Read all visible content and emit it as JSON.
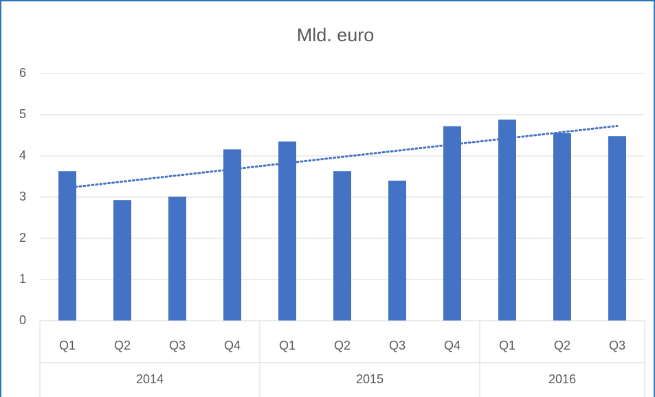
{
  "chart_data": {
    "type": "bar",
    "title": "Mld. euro",
    "groups": [
      {
        "name": "2014",
        "categories": [
          "Q1",
          "Q2",
          "Q3",
          "Q4"
        ]
      },
      {
        "name": "2015",
        "categories": [
          "Q1",
          "Q2",
          "Q3",
          "Q4"
        ]
      },
      {
        "name": "2016",
        "categories": [
          "Q1",
          "Q2",
          "Q3"
        ]
      }
    ],
    "values": [
      3.63,
      2.93,
      3.01,
      4.16,
      4.35,
      3.63,
      3.4,
      4.72,
      4.88,
      4.55,
      4.48
    ],
    "color": "#4472c4",
    "trendline": "linear",
    "trendline_color": "#4472c4",
    "ylim": [
      0,
      6
    ],
    "yticks": [
      0,
      1,
      2,
      3,
      4,
      5,
      6
    ],
    "grid": true
  }
}
